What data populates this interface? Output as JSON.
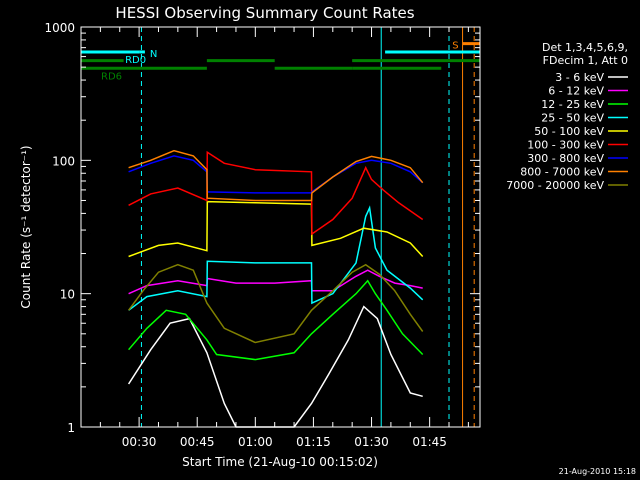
{
  "chart_data": {
    "type": "line",
    "title": "HESSI Observing Summary Count Rates",
    "xlabel": "Start Time (21-Aug-10 00:15:02)",
    "ylabel": "Count Rate (s⁻¹ detector⁻¹)",
    "y_scale": "log",
    "ylim": [
      1,
      1000
    ],
    "y_ticks": [
      "1",
      "10",
      "100",
      "1000"
    ],
    "x_unit": "minutes after 00:00 UT",
    "xlim": [
      15.0,
      118.0
    ],
    "x_ticks": [
      {
        "label": "00:30",
        "value": 30
      },
      {
        "label": "00:45",
        "value": 45
      },
      {
        "label": "01:00",
        "value": 60
      },
      {
        "label": "01:15",
        "value": 75
      },
      {
        "label": "01:30",
        "value": 90
      },
      {
        "label": "01:45",
        "value": 105
      }
    ],
    "grid": false,
    "legend_position": "right",
    "legend_header": [
      "Det 1,3,4,5,6,9,",
      "FDecim 1, Att 0"
    ],
    "series": [
      {
        "name": "3 - 6 keV",
        "color": "#ffffff",
        "x": [
          27.3,
          33,
          38,
          43,
          47.5,
          52,
          55,
          60,
          65,
          70,
          74.5,
          79,
          84,
          88,
          91.5,
          95,
          100,
          103.2
        ],
        "y": [
          2.1,
          3.8,
          6.0,
          6.5,
          3.6,
          1.5,
          1.0,
          1.0,
          1.0,
          1.0,
          1.5,
          2.5,
          4.5,
          8.0,
          6.5,
          3.5,
          1.8,
          1.7
        ]
      },
      {
        "name": "6 - 12 keV",
        "color": "#ff00ff",
        "x": [
          27.3,
          32,
          40,
          47.5,
          47.6,
          55,
          65,
          74.5,
          74.6,
          80,
          86,
          89,
          92,
          96,
          100,
          103.2
        ],
        "y": [
          10,
          11.5,
          12.5,
          11.5,
          13,
          12,
          12,
          12.5,
          10.5,
          10.5,
          13.5,
          15,
          13.5,
          12,
          11.5,
          11
        ]
      },
      {
        "name": "12 - 25 keV",
        "color": "#00ff00",
        "x": [
          27.3,
          32,
          37,
          42,
          47.5,
          50,
          60,
          70,
          74.5,
          80,
          86,
          89,
          91,
          94,
          98,
          103.2
        ],
        "y": [
          3.8,
          5.5,
          7.5,
          7.0,
          4.5,
          3.5,
          3.2,
          3.6,
          5.0,
          7.0,
          10,
          12.5,
          10,
          7.5,
          5.0,
          3.5
        ]
      },
      {
        "name": "25 - 50 keV",
        "color": "#00ffff",
        "x": [
          27.3,
          32,
          40,
          47.5,
          47.6,
          60,
          74.5,
          74.6,
          80,
          86,
          88.5,
          89.5,
          91,
          94,
          100,
          103.2
        ],
        "y": [
          7.5,
          9.5,
          10.5,
          9.5,
          17.5,
          17,
          17,
          8.5,
          10,
          17,
          38,
          44,
          22,
          15,
          11,
          9
        ]
      },
      {
        "name": "50 - 100 keV",
        "color": "#ffff00",
        "x": [
          27.3,
          35,
          40,
          47.5,
          47.6,
          60,
          74.5,
          74.6,
          82,
          88,
          94,
          100,
          103.2
        ],
        "y": [
          19,
          23,
          24,
          21,
          49,
          48,
          47,
          23,
          26,
          31,
          29,
          24,
          19
        ]
      },
      {
        "name": "100 - 300 keV",
        "color": "#ff0000",
        "x": [
          27.3,
          33,
          40,
          47.5,
          47.6,
          52,
          60,
          74.5,
          74.6,
          80,
          85,
          88.5,
          90,
          93,
          97,
          103.2
        ],
        "y": [
          46,
          56,
          62,
          50,
          115,
          95,
          85,
          82,
          28,
          36,
          52,
          88,
          72,
          60,
          48,
          36
        ]
      },
      {
        "name": "300 - 800 keV",
        "color": "#0000ff",
        "x": [
          27.3,
          33,
          39,
          44,
          47.5,
          47.6,
          60,
          74.5,
          74.6,
          80,
          86,
          90,
          95,
          100,
          103.2
        ],
        "y": [
          82,
          95,
          108,
          100,
          82,
          58,
          57,
          57,
          58,
          75,
          95,
          100,
          95,
          82,
          68
        ]
      },
      {
        "name": "800 - 7000 keV",
        "color": "#ff8000",
        "x": [
          27.3,
          33,
          39,
          44,
          47.5,
          47.6,
          60,
          74.5,
          74.6,
          80,
          86,
          90,
          95,
          100,
          103.2
        ],
        "y": [
          88,
          100,
          118,
          108,
          85,
          52,
          50,
          50,
          57,
          75,
          98,
          107,
          100,
          88,
          68
        ]
      },
      {
        "name": "7000 - 20000 keV",
        "color": "#808000",
        "x": [
          27.3,
          31,
          35,
          40,
          44,
          47.5,
          52,
          60,
          70,
          74.5,
          80,
          85,
          88.5,
          92,
          96,
          100,
          103.2
        ],
        "y": [
          7.5,
          10.5,
          14.5,
          16.5,
          15,
          8.5,
          5.5,
          4.3,
          5.0,
          7.5,
          10.5,
          14.5,
          16.5,
          14,
          10.5,
          7,
          5.2
        ]
      }
    ],
    "spacecraft_flags": [
      {
        "label": "RD0",
        "color": "#00ffff",
        "level": 650,
        "intervals": [
          [
            15.0,
            30.0
          ]
        ]
      },
      {
        "label": "N",
        "color": "#00ffff",
        "level": 650,
        "intervals": [
          [
            30.0,
            31.5
          ]
        ]
      },
      {
        "label": "",
        "color": "#00ffff",
        "level": 650,
        "intervals": [
          [
            93.5,
            118.0
          ]
        ]
      },
      {
        "label": "",
        "color": "#008000",
        "level": 560,
        "intervals": [
          [
            15.0,
            26.0
          ],
          [
            47.5,
            65.0
          ],
          [
            85.0,
            118.0
          ]
        ]
      },
      {
        "label": "RD6",
        "color": "#008000",
        "level": 490,
        "intervals": [
          [
            15.0,
            47.5
          ],
          [
            65.0,
            85.0
          ],
          [
            85.0,
            108.0
          ]
        ]
      },
      {
        "label": "S",
        "color": "#ff8000",
        "level": 750,
        "intervals": [
          [
            113.5,
            118.0
          ]
        ]
      }
    ],
    "vertical_markers": [
      {
        "x": 15.0,
        "color": "#00ffff",
        "style": "solid"
      },
      {
        "x": 30.6,
        "color": "#00ffff",
        "style": "dashed"
      },
      {
        "x": 92.5,
        "color": "#00ffff",
        "style": "solid"
      },
      {
        "x": 110.0,
        "color": "#00ffff",
        "style": "dashed"
      },
      {
        "x": 113.5,
        "color": "#ff8000",
        "style": "solid"
      },
      {
        "x": 116.5,
        "color": "#ff8000",
        "style": "dashed"
      }
    ],
    "footer_date": "21-Aug-2010 15:18"
  }
}
